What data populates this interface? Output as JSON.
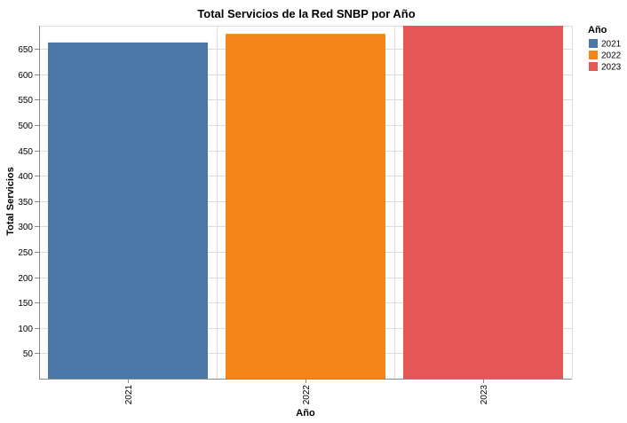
{
  "chart_data": {
    "type": "bar",
    "title": "Total Servicios de la Red SNBP por Año",
    "xlabel": "Año",
    "ylabel": "Total Servicios",
    "categories": [
      "2021",
      "2022",
      "2023"
    ],
    "values": [
      663,
      680,
      696
    ],
    "colors": [
      "#4c78a8",
      "#f58518",
      "#e45756"
    ],
    "ylim": [
      0,
      696
    ],
    "yticks": [
      50,
      100,
      150,
      200,
      250,
      300,
      350,
      400,
      450,
      500,
      550,
      600,
      650
    ],
    "grid": true,
    "legend": {
      "title": "Año",
      "position": "top-right",
      "entries": [
        "2021",
        "2022",
        "2023"
      ]
    }
  }
}
